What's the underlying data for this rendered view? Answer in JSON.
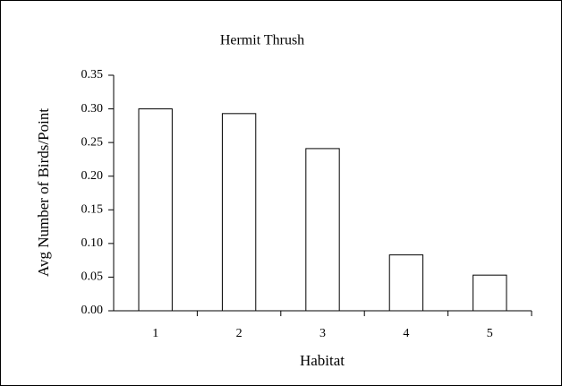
{
  "chart_data": {
    "type": "bar",
    "title": "Hermit Thrush",
    "x_label": "Habitat",
    "y_label": "Avg Number of Birds/Point",
    "categories": [
      "1",
      "2",
      "3",
      "4",
      "5"
    ],
    "values": [
      0.3,
      0.293,
      0.241,
      0.083,
      0.053
    ],
    "color": "#ffffff",
    "ylim": [
      0,
      0.35
    ],
    "yticks": [
      {
        "value": 0,
        "label": "0.00"
      },
      {
        "value": 0.05,
        "label": "0.05"
      },
      {
        "value": 0.1,
        "label": "0.10"
      },
      {
        "value": 0.15,
        "label": "0.15"
      },
      {
        "value": 0.2,
        "label": "0.20"
      },
      {
        "value": 0.25,
        "label": "0.25"
      },
      {
        "value": 0.3,
        "label": "0.30"
      },
      {
        "value": 0.35,
        "label": "0.35"
      }
    ],
    "grid": false
  }
}
